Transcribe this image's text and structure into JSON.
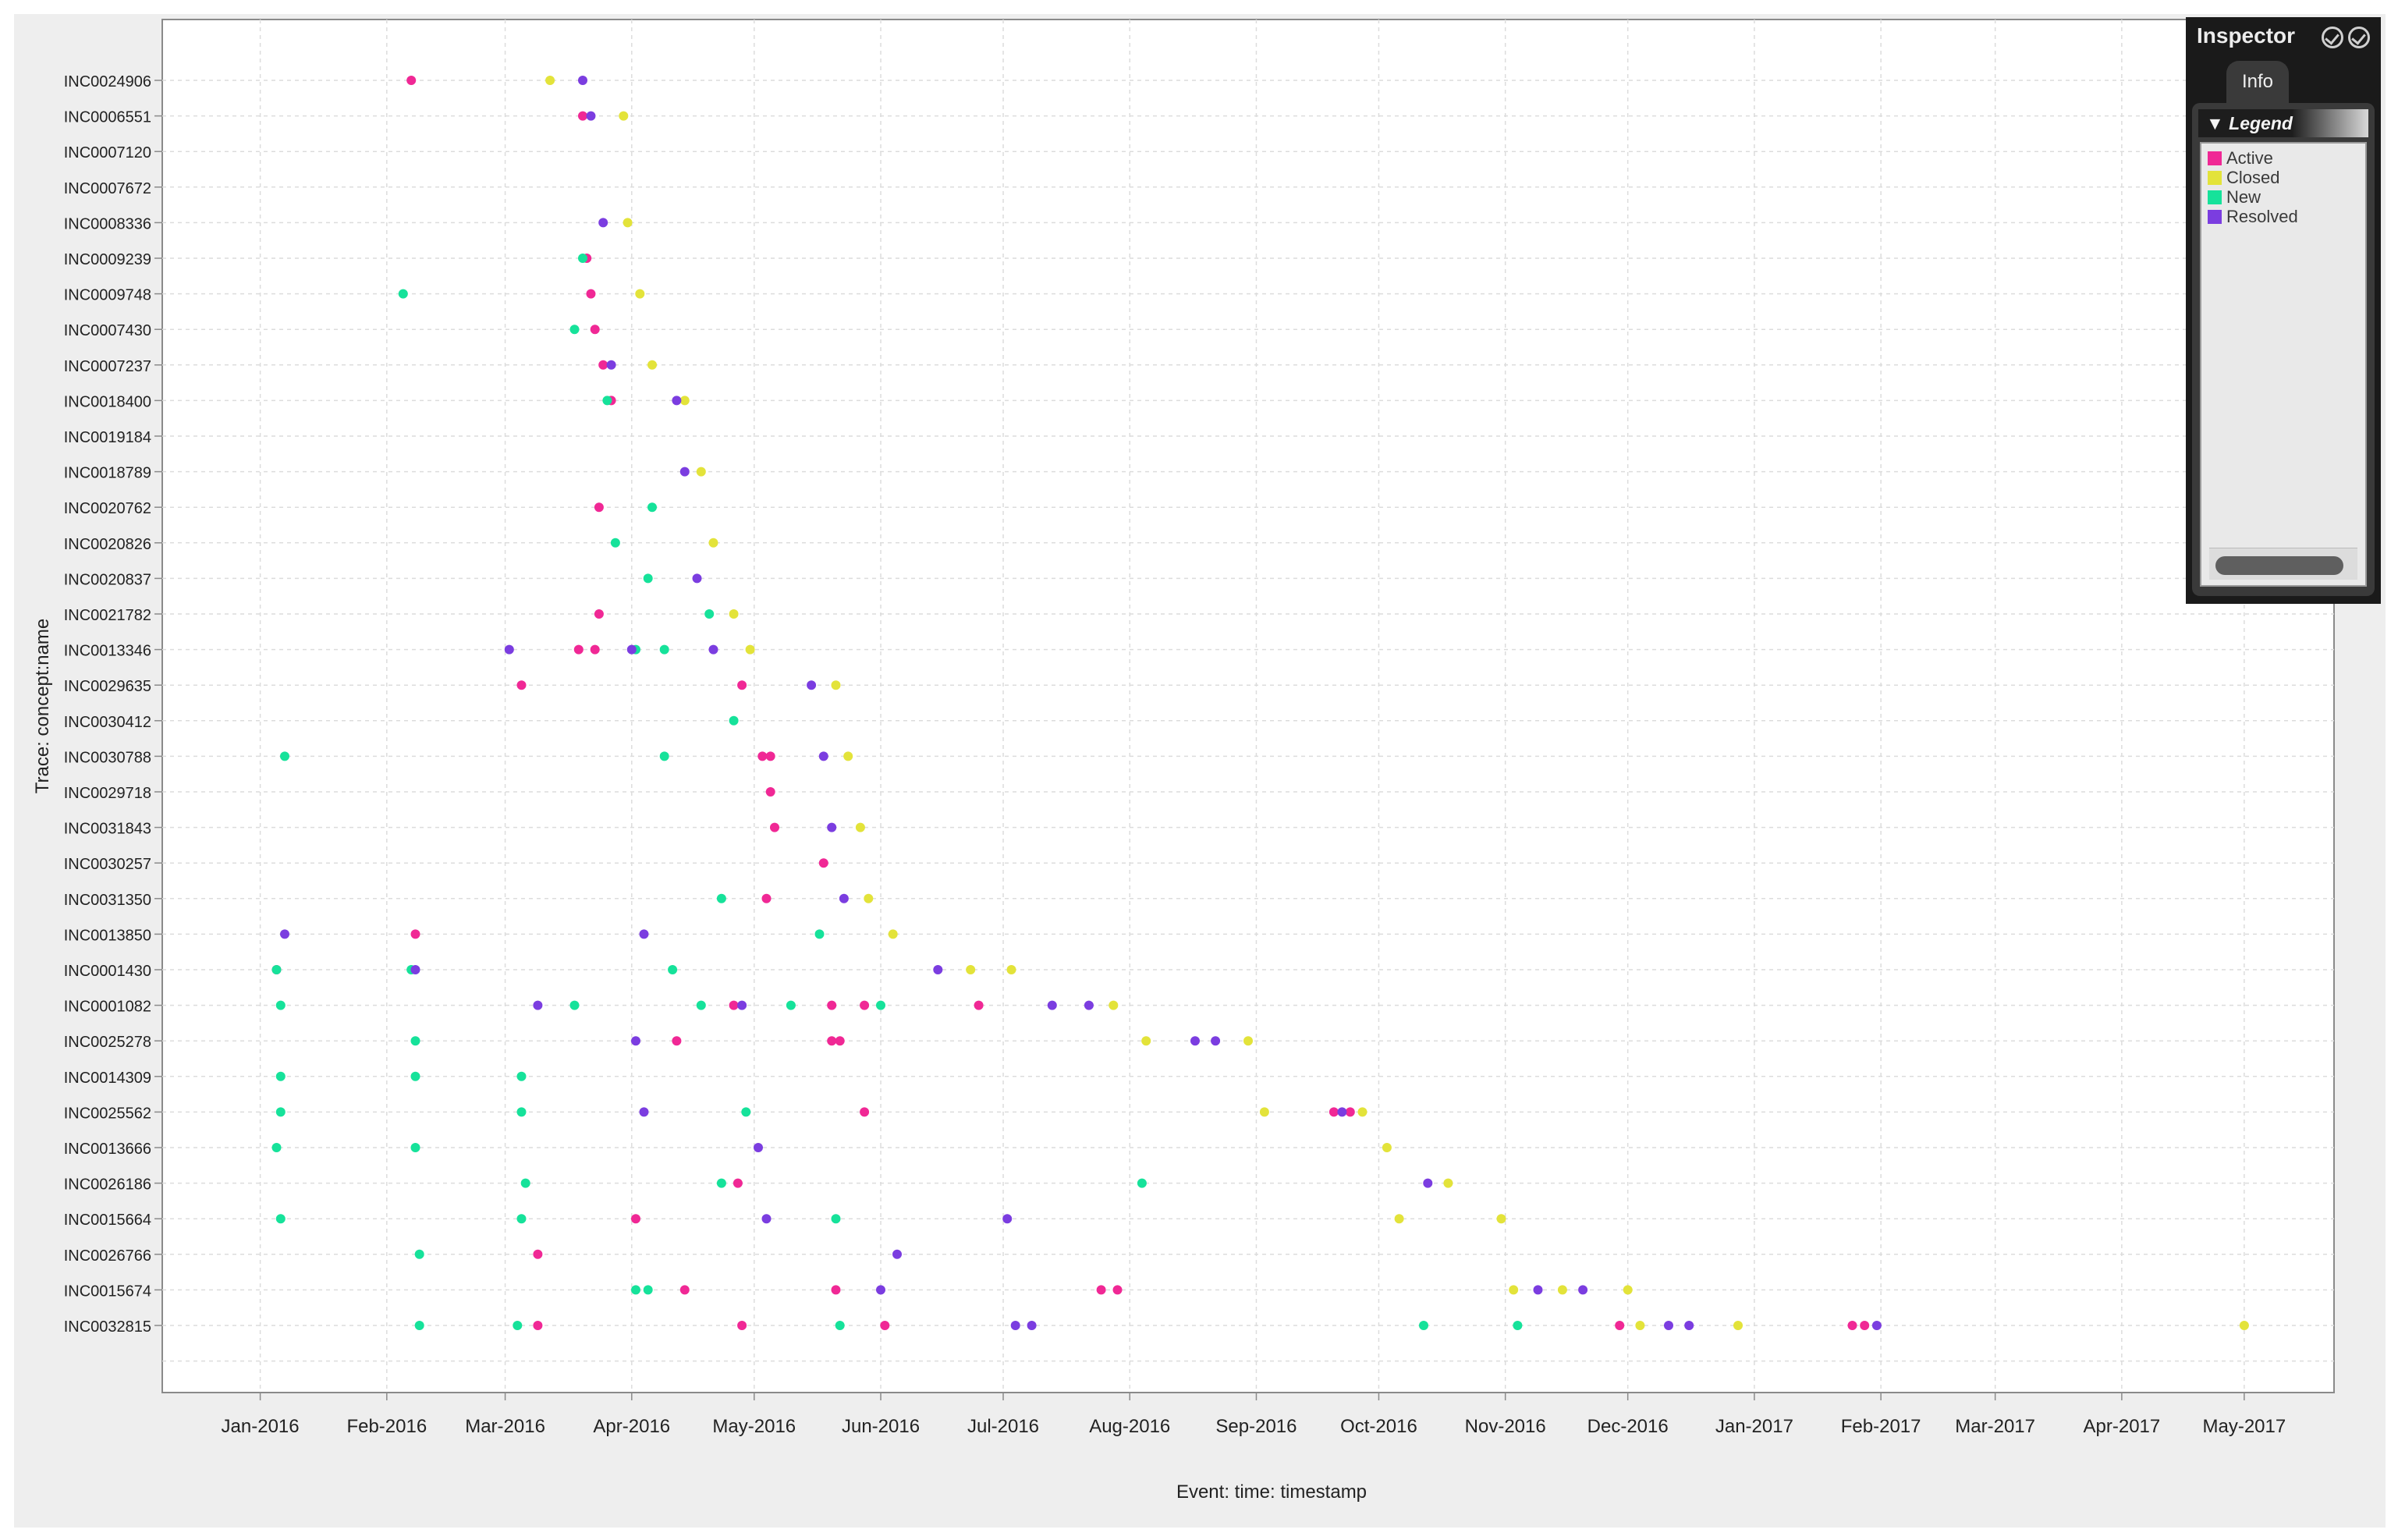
{
  "chart_data": {
    "type": "scatter",
    "title": "",
    "ylabel": "Trace: concept:name",
    "xlabel": "Event: time: timestamp",
    "x_ticks": [
      "Jan-2016",
      "Feb-2016",
      "Mar-2016",
      "Apr-2016",
      "May-2016",
      "Jun-2016",
      "Jul-2016",
      "Aug-2016",
      "Sep-2016",
      "Oct-2016",
      "Nov-2016",
      "Dec-2016",
      "Jan-2017",
      "Feb-2017",
      "Mar-2017",
      "Apr-2017",
      "May-2017"
    ],
    "x_range": [
      "2015-12-08",
      "2017-05-23"
    ],
    "categories": [
      "INC0024906",
      "INC0006551",
      "INC0007120",
      "INC0007672",
      "INC0008336",
      "INC0009239",
      "INC0009748",
      "INC0007430",
      "INC0007237",
      "INC0018400",
      "INC0019184",
      "INC0018789",
      "INC0020762",
      "INC0020826",
      "INC0020837",
      "INC0021782",
      "INC0013346",
      "INC0029635",
      "INC0030412",
      "INC0030788",
      "INC0029718",
      "INC0031843",
      "INC0030257",
      "INC0031350",
      "INC0013850",
      "INC0001430",
      "INC0001082",
      "INC0025278",
      "INC0014309",
      "INC0025562",
      "INC0013666",
      "INC0026186",
      "INC0015664",
      "INC0026766",
      "INC0015674",
      "INC0032815"
    ],
    "grid": true,
    "legend": {
      "title": "Legend",
      "placement": "right-panel"
    },
    "series": [
      {
        "name": "Active",
        "color": "#f02895",
        "points": [
          [
            "2016-02-07",
            "INC0024906"
          ],
          [
            "2016-03-20",
            "INC0006551"
          ],
          [
            "2016-03-21",
            "INC0009239"
          ],
          [
            "2016-03-22",
            "INC0009748"
          ],
          [
            "2016-03-23",
            "INC0007430"
          ],
          [
            "2016-03-25",
            "INC0007237"
          ],
          [
            "2016-03-27",
            "INC0018400"
          ],
          [
            "2016-03-19",
            "INC0013346"
          ],
          [
            "2016-03-23",
            "INC0013346"
          ],
          [
            "2016-03-05",
            "INC0029635"
          ],
          [
            "2016-03-24",
            "INC0020762"
          ],
          [
            "2016-03-24",
            "INC0021782"
          ],
          [
            "2016-04-28",
            "INC0029635"
          ],
          [
            "2016-05-03",
            "INC0030788"
          ],
          [
            "2016-05-05",
            "INC0030788"
          ],
          [
            "2016-05-05",
            "INC0029718"
          ],
          [
            "2016-05-06",
            "INC0031843"
          ],
          [
            "2016-05-04",
            "INC0031350"
          ],
          [
            "2016-05-18",
            "INC0030257"
          ],
          [
            "2016-01-05",
            "INC0001430"
          ],
          [
            "2016-02-08",
            "INC0013850"
          ],
          [
            "2016-04-26",
            "INC0001082"
          ],
          [
            "2016-05-20",
            "INC0001082"
          ],
          [
            "2016-05-28",
            "INC0001082"
          ],
          [
            "2016-06-25",
            "INC0001082"
          ],
          [
            "2016-04-12",
            "INC0025278"
          ],
          [
            "2016-05-20",
            "INC0025278"
          ],
          [
            "2016-05-22",
            "INC0025278"
          ],
          [
            "2016-05-28",
            "INC0025562"
          ],
          [
            "2016-04-27",
            "INC0026186"
          ],
          [
            "2016-04-02",
            "INC0015664"
          ],
          [
            "2016-03-09",
            "INC0026766"
          ],
          [
            "2016-04-14",
            "INC0015674"
          ],
          [
            "2016-03-09",
            "INC0032815"
          ],
          [
            "2016-04-28",
            "INC0032815"
          ],
          [
            "2016-05-21",
            "INC0015674"
          ],
          [
            "2016-06-02",
            "INC0032815"
          ],
          [
            "2016-07-25",
            "INC0015674"
          ],
          [
            "2016-07-29",
            "INC0015674"
          ],
          [
            "2016-09-20",
            "INC0025562"
          ],
          [
            "2016-09-24",
            "INC0025562"
          ],
          [
            "2016-11-29",
            "INC0032815"
          ],
          [
            "2017-01-25",
            "INC0032815"
          ],
          [
            "2017-01-28",
            "INC0032815"
          ]
        ]
      },
      {
        "name": "Closed",
        "color": "#e3e33a",
        "points": [
          [
            "2016-03-12",
            "INC0024906"
          ],
          [
            "2016-03-30",
            "INC0006551"
          ],
          [
            "2016-03-31",
            "INC0008336"
          ],
          [
            "2016-04-03",
            "INC0009748"
          ],
          [
            "2016-04-06",
            "INC0007237"
          ],
          [
            "2016-04-14",
            "INC0018400"
          ],
          [
            "2016-04-18",
            "INC0018789"
          ],
          [
            "2016-04-21",
            "INC0020826"
          ],
          [
            "2016-04-26",
            "INC0021782"
          ],
          [
            "2016-04-30",
            "INC0013346"
          ],
          [
            "2016-05-21",
            "INC0029635"
          ],
          [
            "2016-05-24",
            "INC0030788"
          ],
          [
            "2016-05-27",
            "INC0031843"
          ],
          [
            "2016-05-29",
            "INC0031350"
          ],
          [
            "2016-06-04",
            "INC0013850"
          ],
          [
            "2016-06-23",
            "INC0001430"
          ],
          [
            "2016-07-03",
            "INC0001430"
          ],
          [
            "2016-07-28",
            "INC0001082"
          ],
          [
            "2016-08-05",
            "INC0025278"
          ],
          [
            "2016-08-30",
            "INC0025278"
          ],
          [
            "2016-09-03",
            "INC0025562"
          ],
          [
            "2016-09-27",
            "INC0025562"
          ],
          [
            "2016-10-03",
            "INC0013666"
          ],
          [
            "2016-10-06",
            "INC0015664"
          ],
          [
            "2016-10-18",
            "INC0026186"
          ],
          [
            "2016-10-31",
            "INC0015664"
          ],
          [
            "2016-11-03",
            "INC0015674"
          ],
          [
            "2016-11-15",
            "INC0015674"
          ],
          [
            "2016-12-01",
            "INC0015674"
          ],
          [
            "2016-12-04",
            "INC0032815"
          ],
          [
            "2016-12-28",
            "INC0032815"
          ],
          [
            "2017-05-01",
            "INC0032815"
          ]
        ]
      },
      {
        "name": "New",
        "color": "#16e29a",
        "points": [
          [
            "2016-02-05",
            "INC0009748"
          ],
          [
            "2016-03-20",
            "INC0009239"
          ],
          [
            "2016-03-18",
            "INC0007430"
          ],
          [
            "2016-03-26",
            "INC0018400"
          ],
          [
            "2016-04-06",
            "INC0020762"
          ],
          [
            "2016-03-28",
            "INC0020826"
          ],
          [
            "2016-04-05",
            "INC0020837"
          ],
          [
            "2016-04-09",
            "INC0013346"
          ],
          [
            "2016-04-02",
            "INC0013346"
          ],
          [
            "2016-04-20",
            "INC0021782"
          ],
          [
            "2016-04-26",
            "INC0030412"
          ],
          [
            "2016-01-07",
            "INC0030788"
          ],
          [
            "2016-04-09",
            "INC0030788"
          ],
          [
            "2016-04-23",
            "INC0031350"
          ],
          [
            "2016-05-17",
            "INC0013850"
          ],
          [
            "2016-01-05",
            "INC0001430"
          ],
          [
            "2016-01-06",
            "INC0001082"
          ],
          [
            "2016-01-06",
            "INC0014309"
          ],
          [
            "2016-01-06",
            "INC0025562"
          ],
          [
            "2016-01-05",
            "INC0013666"
          ],
          [
            "2016-01-06",
            "INC0015664"
          ],
          [
            "2016-02-07",
            "INC0001430"
          ],
          [
            "2016-02-08",
            "INC0025278"
          ],
          [
            "2016-02-08",
            "INC0014309"
          ],
          [
            "2016-02-08",
            "INC0013666"
          ],
          [
            "2016-02-09",
            "INC0026766"
          ],
          [
            "2016-02-09",
            "INC0032815"
          ],
          [
            "2016-03-05",
            "INC0014309"
          ],
          [
            "2016-03-05",
            "INC0025562"
          ],
          [
            "2016-03-06",
            "INC0026186"
          ],
          [
            "2016-03-05",
            "INC0015664"
          ],
          [
            "2016-03-04",
            "INC0032815"
          ],
          [
            "2016-03-18",
            "INC0001082"
          ],
          [
            "2016-04-11",
            "INC0001430"
          ],
          [
            "2016-04-18",
            "INC0001082"
          ],
          [
            "2016-04-23",
            "INC0026186"
          ],
          [
            "2016-04-29",
            "INC0025562"
          ],
          [
            "2016-05-10",
            "INC0001082"
          ],
          [
            "2016-05-21",
            "INC0015664"
          ],
          [
            "2016-05-22",
            "INC0032815"
          ],
          [
            "2016-06-01",
            "INC0001082"
          ],
          [
            "2016-04-02",
            "INC0015674"
          ],
          [
            "2016-04-05",
            "INC0015674"
          ],
          [
            "2016-08-04",
            "INC0026186"
          ],
          [
            "2016-10-12",
            "INC0032815"
          ],
          [
            "2016-11-04",
            "INC0032815"
          ]
        ]
      },
      {
        "name": "Resolved",
        "color": "#7b3de0",
        "points": [
          [
            "2016-03-20",
            "INC0024906"
          ],
          [
            "2016-03-22",
            "INC0006551"
          ],
          [
            "2016-03-25",
            "INC0008336"
          ],
          [
            "2016-03-27",
            "INC0007237"
          ],
          [
            "2016-04-12",
            "INC0018400"
          ],
          [
            "2016-04-14",
            "INC0018789"
          ],
          [
            "2016-04-17",
            "INC0020837"
          ],
          [
            "2016-04-21",
            "INC0013346"
          ],
          [
            "2016-03-02",
            "INC0013346"
          ],
          [
            "2016-04-01",
            "INC0013346"
          ],
          [
            "2016-05-15",
            "INC0029635"
          ],
          [
            "2016-05-18",
            "INC0030788"
          ],
          [
            "2016-05-20",
            "INC0031843"
          ],
          [
            "2016-05-23",
            "INC0031350"
          ],
          [
            "2016-01-07",
            "INC0013850"
          ],
          [
            "2016-02-08",
            "INC0001430"
          ],
          [
            "2016-03-09",
            "INC0001082"
          ],
          [
            "2016-04-02",
            "INC0025278"
          ],
          [
            "2016-04-04",
            "INC0025562"
          ],
          [
            "2016-05-02",
            "INC0013666"
          ],
          [
            "2016-05-04",
            "INC0015664"
          ],
          [
            "2016-04-04",
            "INC0013850"
          ],
          [
            "2016-06-05",
            "INC0026766"
          ],
          [
            "2016-06-01",
            "INC0015674"
          ],
          [
            "2016-04-28",
            "INC0001082"
          ],
          [
            "2016-06-15",
            "INC0001430"
          ],
          [
            "2016-07-13",
            "INC0001082"
          ],
          [
            "2016-07-22",
            "INC0001082"
          ],
          [
            "2016-08-17",
            "INC0025278"
          ],
          [
            "2016-08-22",
            "INC0025278"
          ],
          [
            "2016-09-22",
            "INC0025562"
          ],
          [
            "2016-07-02",
            "INC0015664"
          ],
          [
            "2016-07-04",
            "INC0032815"
          ],
          [
            "2016-07-08",
            "INC0032815"
          ],
          [
            "2016-10-13",
            "INC0026186"
          ],
          [
            "2016-11-09",
            "INC0015674"
          ],
          [
            "2016-11-20",
            "INC0015674"
          ],
          [
            "2016-12-11",
            "INC0032815"
          ],
          [
            "2016-12-16",
            "INC0032815"
          ],
          [
            "2017-01-31",
            "INC0032815"
          ]
        ]
      }
    ]
  },
  "inspector": {
    "title": "Inspector",
    "tab": "Info",
    "legend_header": "▼ Legend",
    "legend_items": [
      {
        "label": "Active",
        "color": "#f02895"
      },
      {
        "label": "Closed",
        "color": "#e3e33a"
      },
      {
        "label": "New",
        "color": "#16e29a"
      },
      {
        "label": "Resolved",
        "color": "#7b3de0"
      }
    ]
  }
}
